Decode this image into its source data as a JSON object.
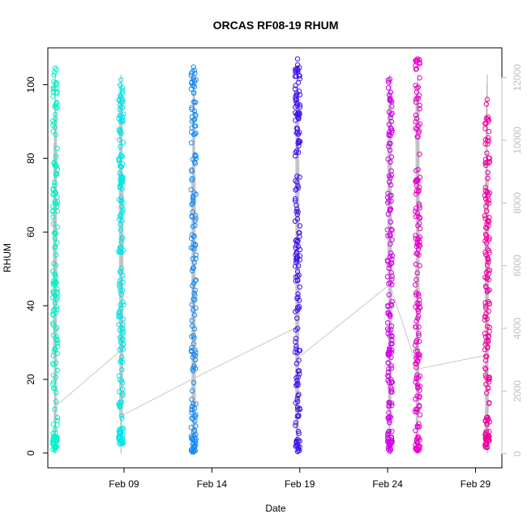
{
  "chart_data": {
    "type": "scatter",
    "title": "ORCAS RF08-19 RHUM",
    "xlabel": "Date",
    "ylabel": "RHUM",
    "x_ticks": [
      "Feb 09",
      "Feb 14",
      "Feb 19",
      "Feb 24",
      "Feb 29"
    ],
    "x_tick_dates": [
      "2016-02-09",
      "2016-02-14",
      "2016-02-19",
      "2016-02-24",
      "2016-02-29"
    ],
    "xlim": [
      "2016-02-04T16:00",
      "2016-03-01T12:00"
    ],
    "ylim": [
      -4,
      110
    ],
    "y_ticks": [
      0,
      20,
      40,
      60,
      80,
      100
    ],
    "y2_ticks": [
      0,
      2000,
      4000,
      6000,
      8000,
      10000,
      12000
    ],
    "y2lim": [
      -450,
      12950
    ],
    "y2_color": "#bfbfbf",
    "grid": false,
    "flights": [
      {
        "date": "2016-02-05T02:00",
        "color": "#00f2c8",
        "ymin": 0.8,
        "ymax": 104.5,
        "avg_rhum": 15,
        "avg_altitude": 1500
      },
      {
        "date": "2016-02-08T20:00",
        "color": "#00e6e6",
        "ymin": 2.5,
        "ymax": 101.3,
        "avg_rhum": 26.5,
        "avg_altitude": 3300,
        "secondary_avg_rhum": 10.8,
        "secondary_avg_altitude": 1200
      },
      {
        "date": "2016-02-12T23:00",
        "color": "#1a8cf2",
        "ymin": 0.3,
        "ymax": 104.8,
        "avg_rhum": 19.5,
        "avg_altitude": 2400
      },
      {
        "date": "2016-02-18T21:00",
        "color": "#4010f0",
        "ymin": 0.4,
        "ymax": 107,
        "avg_rhum": 33,
        "avg_altitude": 4050,
        "secondary_avg_rhum": 25,
        "secondary_avg_altitude": 3050
      },
      {
        "date": "2016-02-24T03:00",
        "color": "#d000e8",
        "ymin": 0.5,
        "ymax": 101.5,
        "avg_rhum": 44,
        "avg_altitude": 5400
      },
      {
        "date": "2016-02-25T17:00",
        "color": "#e800cc",
        "ymin": 0.6,
        "ymax": 107,
        "avg_rhum": 22,
        "avg_altitude": 2700
      },
      {
        "date": "2016-02-29T16:00",
        "color": "#f000a0",
        "ymin": 1.5,
        "ymax": 96,
        "avg_rhum": 26,
        "avg_altitude": 3150
      }
    ]
  }
}
